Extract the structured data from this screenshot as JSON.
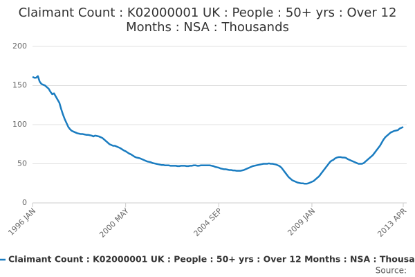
{
  "chart_data": {
    "type": "line",
    "title": "Claimant Count : K02000001 UK : People : 50+ yrs : Over 12 Months : NSA : Thousands",
    "source_label": "Source:",
    "categories": [
      "1996 JAN",
      null,
      null,
      null,
      null,
      null,
      null,
      null,
      null,
      null,
      null,
      null,
      null,
      null,
      null,
      null,
      null,
      null,
      null,
      null,
      null,
      null,
      null,
      null,
      null,
      null,
      null,
      null,
      null,
      null,
      null,
      null,
      null,
      null,
      null,
      null,
      null,
      null,
      null,
      null,
      null,
      null,
      null,
      null,
      null,
      null,
      null,
      null,
      null,
      null,
      null,
      null,
      "2000 MAY",
      null,
      null,
      null,
      null,
      null,
      null,
      null,
      null,
      null,
      null,
      null,
      null,
      null,
      null,
      null,
      null,
      null,
      null,
      null,
      null,
      null,
      null,
      null,
      null,
      null,
      null,
      null,
      null,
      null,
      null,
      null,
      null,
      null,
      null,
      null,
      null,
      null,
      null,
      null,
      null,
      null,
      null,
      null,
      null,
      null,
      null,
      null,
      null,
      null,
      null,
      null,
      "2004 SEP",
      null,
      null,
      null,
      null,
      null,
      null,
      null,
      null,
      null,
      null,
      null,
      null,
      null,
      null,
      null,
      null,
      null,
      null,
      null,
      null,
      null,
      null,
      null,
      null,
      null,
      null,
      null,
      null,
      null,
      null,
      null,
      null,
      null,
      null,
      null,
      null,
      null,
      null,
      null,
      null,
      null,
      null,
      null,
      null,
      null,
      null,
      null,
      null,
      null,
      null,
      null,
      "2009 JAN",
      null,
      null,
      null,
      null,
      null,
      null,
      null,
      null,
      null,
      null,
      null,
      null,
      null,
      null,
      null,
      null,
      null,
      null,
      null,
      null,
      null,
      null,
      null,
      null,
      null,
      null,
      null,
      null,
      null,
      null,
      null,
      null,
      null,
      null,
      null,
      null,
      null,
      null,
      null,
      null,
      null,
      null,
      null,
      null,
      null,
      null,
      null,
      null,
      null,
      null,
      "2013 APR"
    ],
    "series": [
      {
        "name": "Claimant Count : K02000001 UK : People : 50+ yrs : Over 12 Months : NSA : Thousands",
        "color": "#1a7cc0",
        "values": [
          161,
          160,
          160,
          162,
          155,
          152,
          151,
          150,
          148,
          146,
          142,
          139,
          140,
          136,
          132,
          128,
          120,
          113,
          107,
          102,
          97,
          94,
          92,
          91,
          90,
          89,
          88.5,
          88,
          88,
          87.5,
          87,
          87,
          86.5,
          86,
          85,
          86,
          85.5,
          85,
          84,
          83,
          81,
          79,
          77,
          75,
          74,
          73,
          73,
          72,
          71,
          70,
          68.5,
          67,
          66,
          64.5,
          63,
          62,
          60.5,
          59,
          58,
          57.5,
          57,
          56,
          55,
          54,
          53,
          52.5,
          52,
          51,
          50.5,
          50,
          49.5,
          49,
          48.5,
          48.5,
          48,
          48,
          48,
          47.5,
          47.5,
          47.5,
          47.5,
          47,
          47,
          47.5,
          47.5,
          47.5,
          47,
          47,
          47.5,
          47.5,
          48,
          48,
          47.5,
          47.5,
          48,
          48,
          48,
          48,
          48,
          48,
          47.5,
          47,
          46,
          45.5,
          45,
          44,
          43.5,
          43,
          43,
          42.5,
          42,
          42,
          41.5,
          41.5,
          41,
          41,
          41,
          41.5,
          42,
          43,
          44,
          45,
          46,
          47,
          47.5,
          48,
          48.5,
          49,
          49.5,
          50,
          50,
          50,
          50.5,
          50,
          50,
          49.5,
          49,
          48,
          47,
          45,
          42,
          39,
          36,
          33,
          31,
          29,
          28,
          27,
          26,
          25.5,
          25,
          25,
          24.5,
          24.5,
          25,
          26,
          27,
          28,
          30,
          32,
          34,
          37,
          40,
          43,
          46,
          49,
          52,
          54,
          55,
          57,
          58,
          58.5,
          58.5,
          58,
          58,
          57.5,
          56,
          55,
          54,
          53,
          52,
          51,
          50,
          50,
          50,
          51,
          53,
          55,
          57,
          59,
          61,
          64,
          67,
          70,
          73,
          77,
          81,
          84,
          86,
          88,
          90,
          91,
          92,
          92.5,
          93,
          95,
          96,
          97
        ]
      }
    ],
    "ylim": [
      0,
      200
    ],
    "yticks": [
      0,
      50,
      100,
      150,
      200
    ],
    "grid": true
  }
}
